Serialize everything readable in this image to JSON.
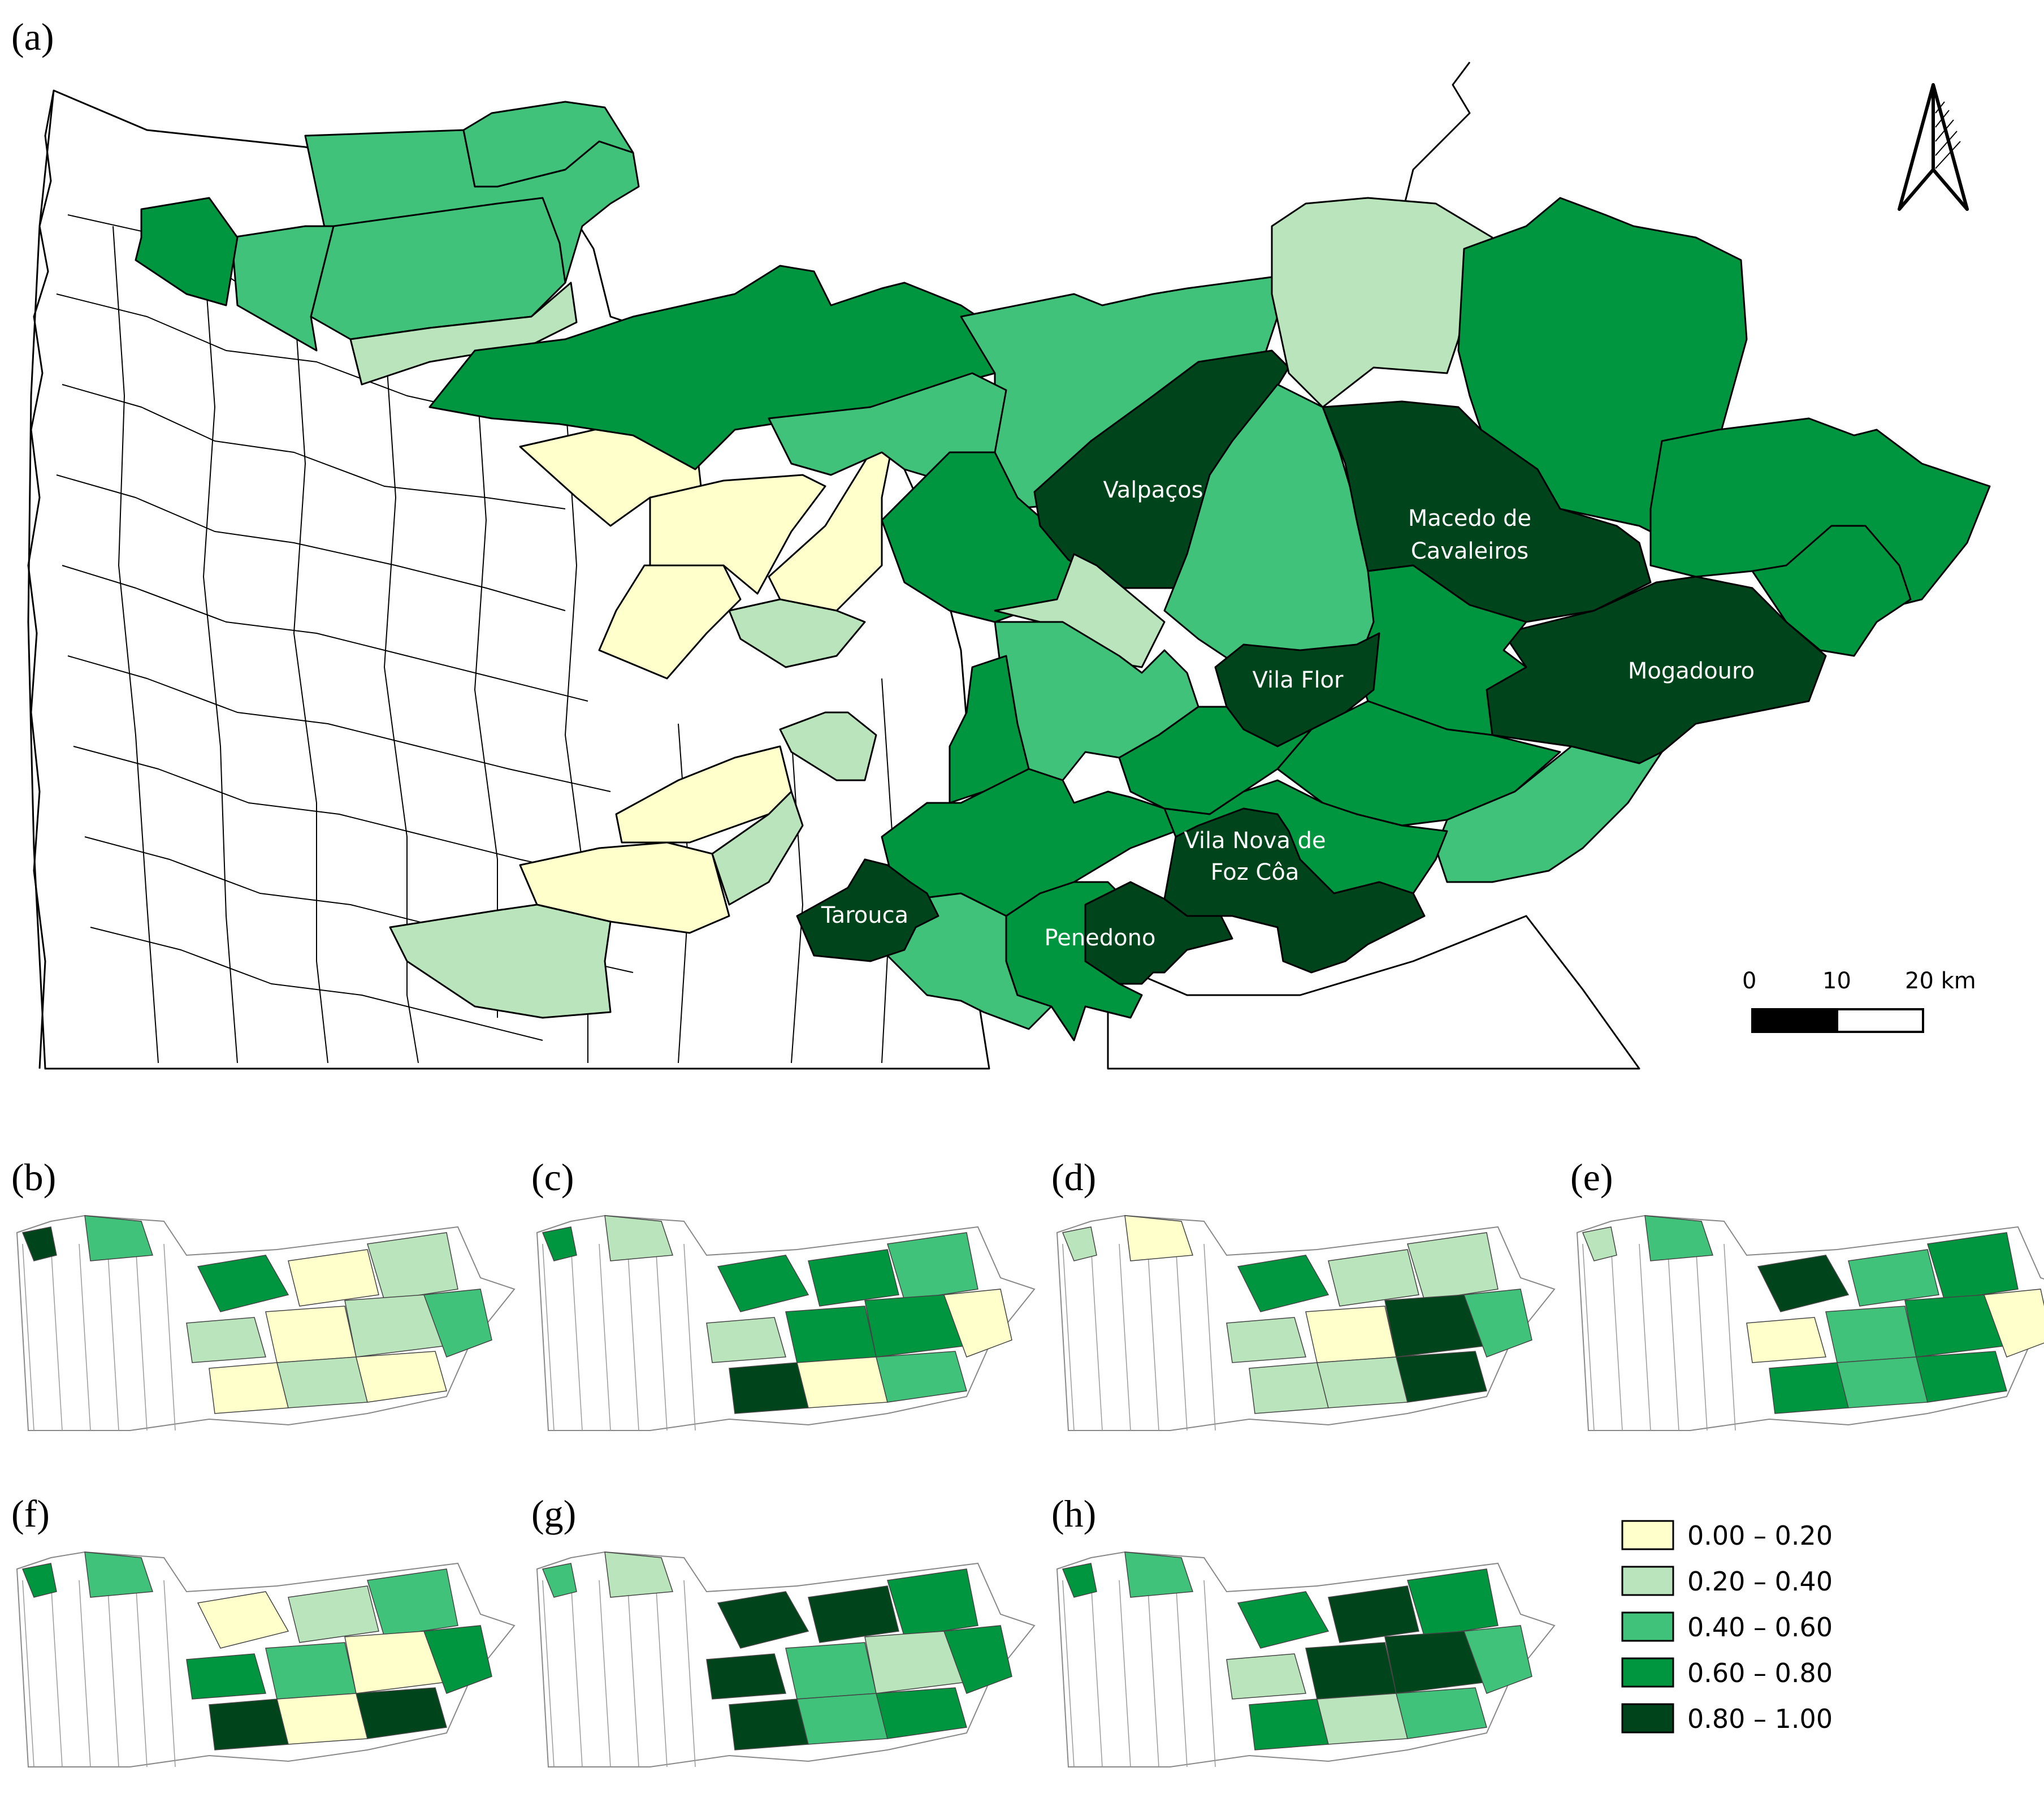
{
  "colors": {
    "class_0": "#FFFFCC",
    "class_1": "#BAE4BC",
    "class_2": "#41C27A",
    "class_3": "#00953F",
    "class_4": "#00441B",
    "no_data": "#FFFFFF",
    "border": "#000000"
  },
  "panels": {
    "a": "(a)",
    "b": "(b)",
    "c": "(c)",
    "d": "(d)",
    "e": "(e)",
    "f": "(f)",
    "g": "(g)",
    "h": "(h)"
  },
  "map_a": {
    "labels": {
      "valpacos": "Valpaços",
      "macedo_1": "Macedo de",
      "macedo_2": "Cavaleiros",
      "mogadouro": "Mogadouro",
      "vila_flor": "Vila Flor",
      "foz_coa_1": "Vila Nova de",
      "foz_coa_2": "Foz Côa",
      "tarouca": "Tarouca",
      "penedono": "Penedono"
    },
    "north_arrow_icon": "north-arrow-icon",
    "scale_bar": {
      "tick_0": "0",
      "tick_1": "10",
      "tick_2": "20 km"
    }
  },
  "legend": [
    {
      "label": "0.00 – 0.20",
      "color_key": "class_0"
    },
    {
      "label": "0.20 – 0.40",
      "color_key": "class_1"
    },
    {
      "label": "0.40 – 0.60",
      "color_key": "class_2"
    },
    {
      "label": "0.60 – 0.80",
      "color_key": "class_3"
    },
    {
      "label": "0.80 – 1.00",
      "color_key": "class_4"
    }
  ]
}
